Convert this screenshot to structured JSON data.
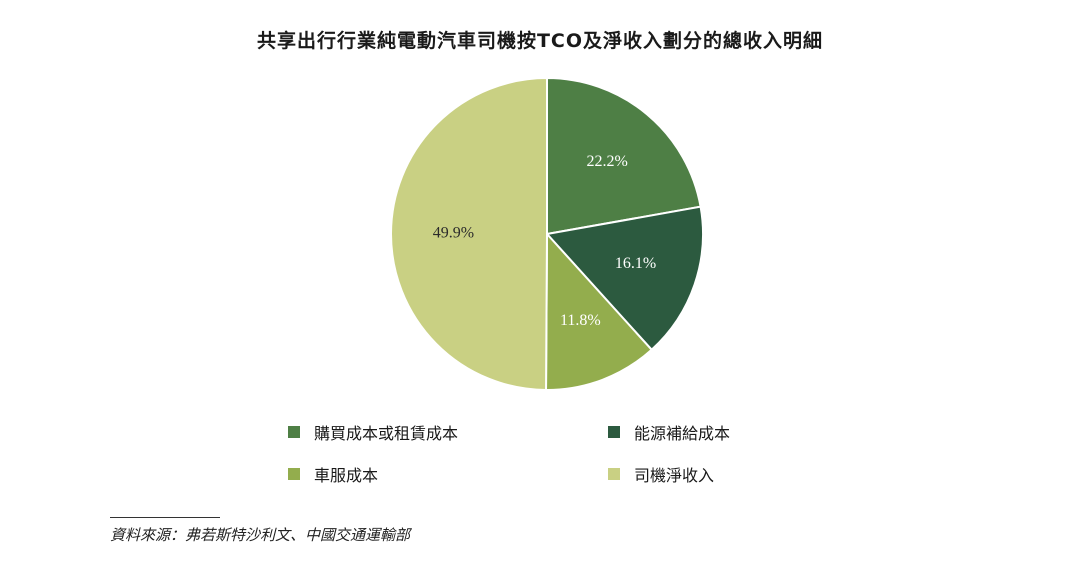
{
  "chart_data": {
    "type": "pie",
    "title": "共享出行行業純電動汽車司機按TCO及淨收入劃分的總收入明細",
    "slices": [
      {
        "label": "購買成本或租賃成本",
        "value": 22.2,
        "display": "22.2%",
        "color": "#4e7f45"
      },
      {
        "label": "能源補給成本",
        "value": 16.1,
        "display": "16.1%",
        "color": "#2c5a3f"
      },
      {
        "label": "車服成本",
        "value": 11.8,
        "display": "11.8%",
        "color": "#93ad4d"
      },
      {
        "label": "司機淨收入",
        "value": 49.9,
        "display": "49.9%",
        "color": "#c9d083"
      }
    ],
    "legend_placement": "bottom",
    "start_angle_deg": 0,
    "direction": "clockwise"
  },
  "source": "資料來源：弗若斯特沙利文、中國交通運輸部"
}
